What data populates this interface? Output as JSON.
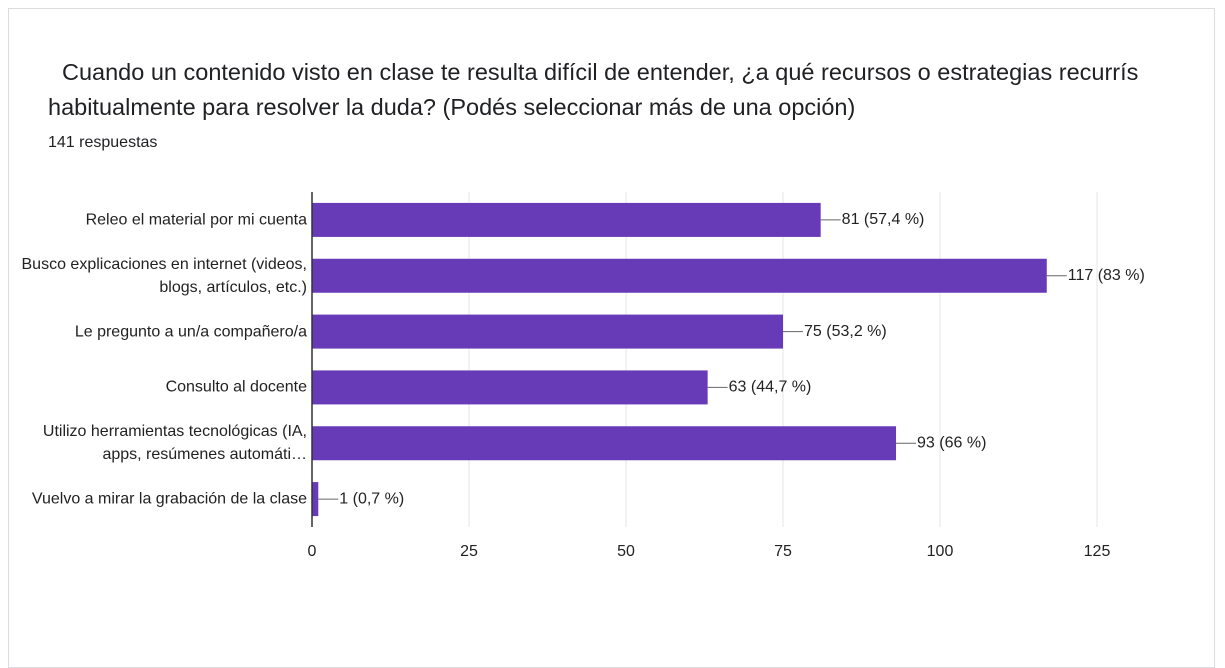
{
  "header": {
    "title": "Cuando un contenido visto en clase te resulta difícil de entender, ¿a qué recursos o estrategias recurrís habitualmente para resolver la duda? (Podés seleccionar más de una opción)",
    "subtitle": "141 respuestas"
  },
  "chart_data": {
    "type": "bar",
    "orientation": "horizontal",
    "categories": [
      "Releo el material por mi cuenta",
      "Busco explicaciones en internet (videos, blogs, artículos, etc.)",
      "Le pregunto a un/a compañero/a",
      "Consulto al docente",
      "Utilizo herramientas tecnológicas (IA, apps, resúmenes automáti…",
      "Vuelvo a mirar la grabación de la clase"
    ],
    "values": [
      81,
      117,
      75,
      63,
      93,
      1
    ],
    "value_labels": [
      "81 (57,4 %)",
      "117 (83 %)",
      "75 (53,2 %)",
      "63 (44,7 %)",
      "93 (66 %)",
      "1 (0,7 %)"
    ],
    "color": "#673ab7",
    "xlim": [
      0,
      125
    ],
    "xticks": [
      0,
      25,
      50,
      75,
      100,
      125
    ],
    "grid": true
  }
}
